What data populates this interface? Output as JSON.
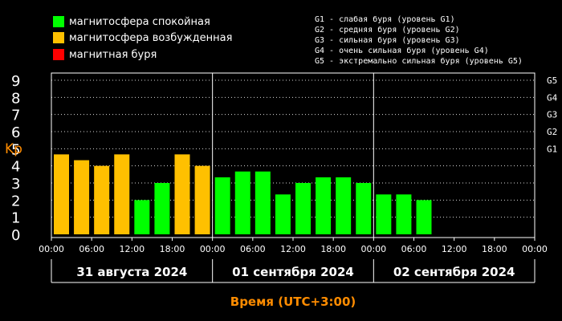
{
  "legend": [
    {
      "label": "магнитосфера спокойная",
      "color": "#00ff00"
    },
    {
      "label": "магнитосфера возбужденная",
      "color": "#ffc000"
    },
    {
      "label": "магнитная буря",
      "color": "#ff0000"
    }
  ],
  "storm_scale": [
    "G1 - слабая буря (уровень G1)",
    "G2 - средняя буря (уровень G2)",
    "G3 - сильная буря (уровень G3)",
    "G4 - очень сильная буря (уровень G4)",
    "G5 - экстремально сильная буря (уровень G5)"
  ],
  "chart_data": {
    "type": "bar",
    "ylabel": "Kp",
    "xlabel": "Время (UTC+3:00)",
    "ylim": [
      0,
      9
    ],
    "y_ticks": [
      "0",
      "1",
      "2",
      "3",
      "4",
      "5",
      "6",
      "7",
      "8",
      "9"
    ],
    "right_ticks": [
      {
        "label": "G1",
        "value": 5
      },
      {
        "label": "G2",
        "value": 6
      },
      {
        "label": "G3",
        "value": 7
      },
      {
        "label": "G4",
        "value": 8
      },
      {
        "label": "G5",
        "value": 9
      }
    ],
    "x_tick_labels": [
      "00:00",
      "06:00",
      "12:00",
      "18:00"
    ],
    "days": [
      {
        "label": "31 августа 2024",
        "values": [
          4.67,
          4.33,
          4.0,
          4.67,
          2.0,
          3.0,
          4.67,
          4.0
        ]
      },
      {
        "label": "01 сентября 2024",
        "values": [
          3.33,
          3.67,
          3.67,
          2.33,
          3.0,
          3.33,
          3.33,
          3.0
        ]
      },
      {
        "label": "02 сентября 2024",
        "values": [
          2.33,
          2.33,
          2.0
        ]
      }
    ],
    "final_tick": "00:00",
    "colors": {
      "quiet": "#00ff00",
      "active": "#ffc000",
      "storm": "#ff0000"
    },
    "thresholds": {
      "active": 4,
      "storm": 5
    }
  }
}
